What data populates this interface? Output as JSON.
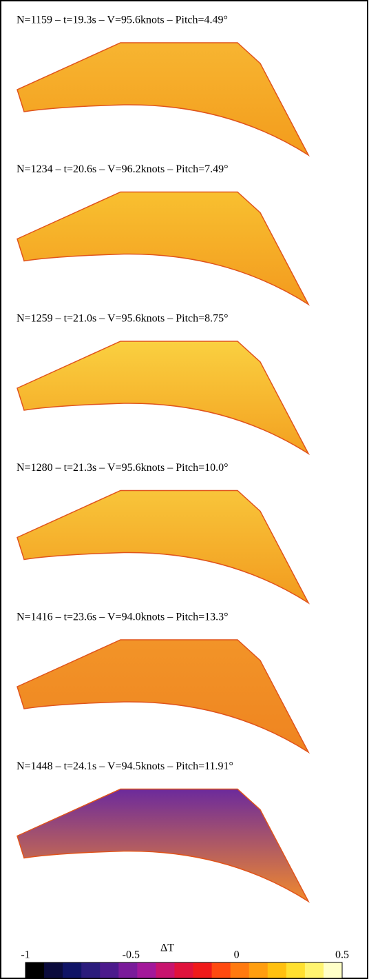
{
  "panels": [
    {
      "label": "N=1159 – t=19.3s – V=95.6knots – Pitch=4.49°",
      "colors": [
        "#f7b531",
        "#f39c1c"
      ]
    },
    {
      "label": "N=1234 – t=20.6s – V=96.2knots – Pitch=7.49°",
      "colors": [
        "#f8c030",
        "#f39a1e"
      ]
    },
    {
      "label": "N=1259 – t=21.0s – V=95.6knots – Pitch=8.75°",
      "colors": [
        "#fad040",
        "#f3a020"
      ]
    },
    {
      "label": "N=1280 – t=21.3s – V=95.6knots – Pitch=10.0°",
      "colors": [
        "#f8c53a",
        "#f29a1e"
      ]
    },
    {
      "label": "N=1416 – t=23.6s – V=94.0knots – Pitch=13.3°",
      "colors": [
        "#f29428",
        "#ef8420"
      ]
    },
    {
      "label": "N=1448 – t=24.1s – V=94.5knots – Pitch=11.91°",
      "colors": [
        "#6c2a9c",
        "#f28a2c"
      ]
    }
  ],
  "colorbar": {
    "label": "ΔT",
    "lim": [
      -1,
      0.5
    ],
    "ticks": [
      -1,
      -0.5,
      0,
      0.5
    ],
    "colors": [
      "#000000",
      "#0b0b3c",
      "#101466",
      "#2b1c7c",
      "#4c1a8c",
      "#7a1b9a",
      "#a3189a",
      "#c8146e",
      "#e0123c",
      "#f01a1a",
      "#ff4a10",
      "#ff7a10",
      "#ff9e10",
      "#ffc010",
      "#ffe030",
      "#fff470",
      "#ffffc8"
    ]
  }
}
